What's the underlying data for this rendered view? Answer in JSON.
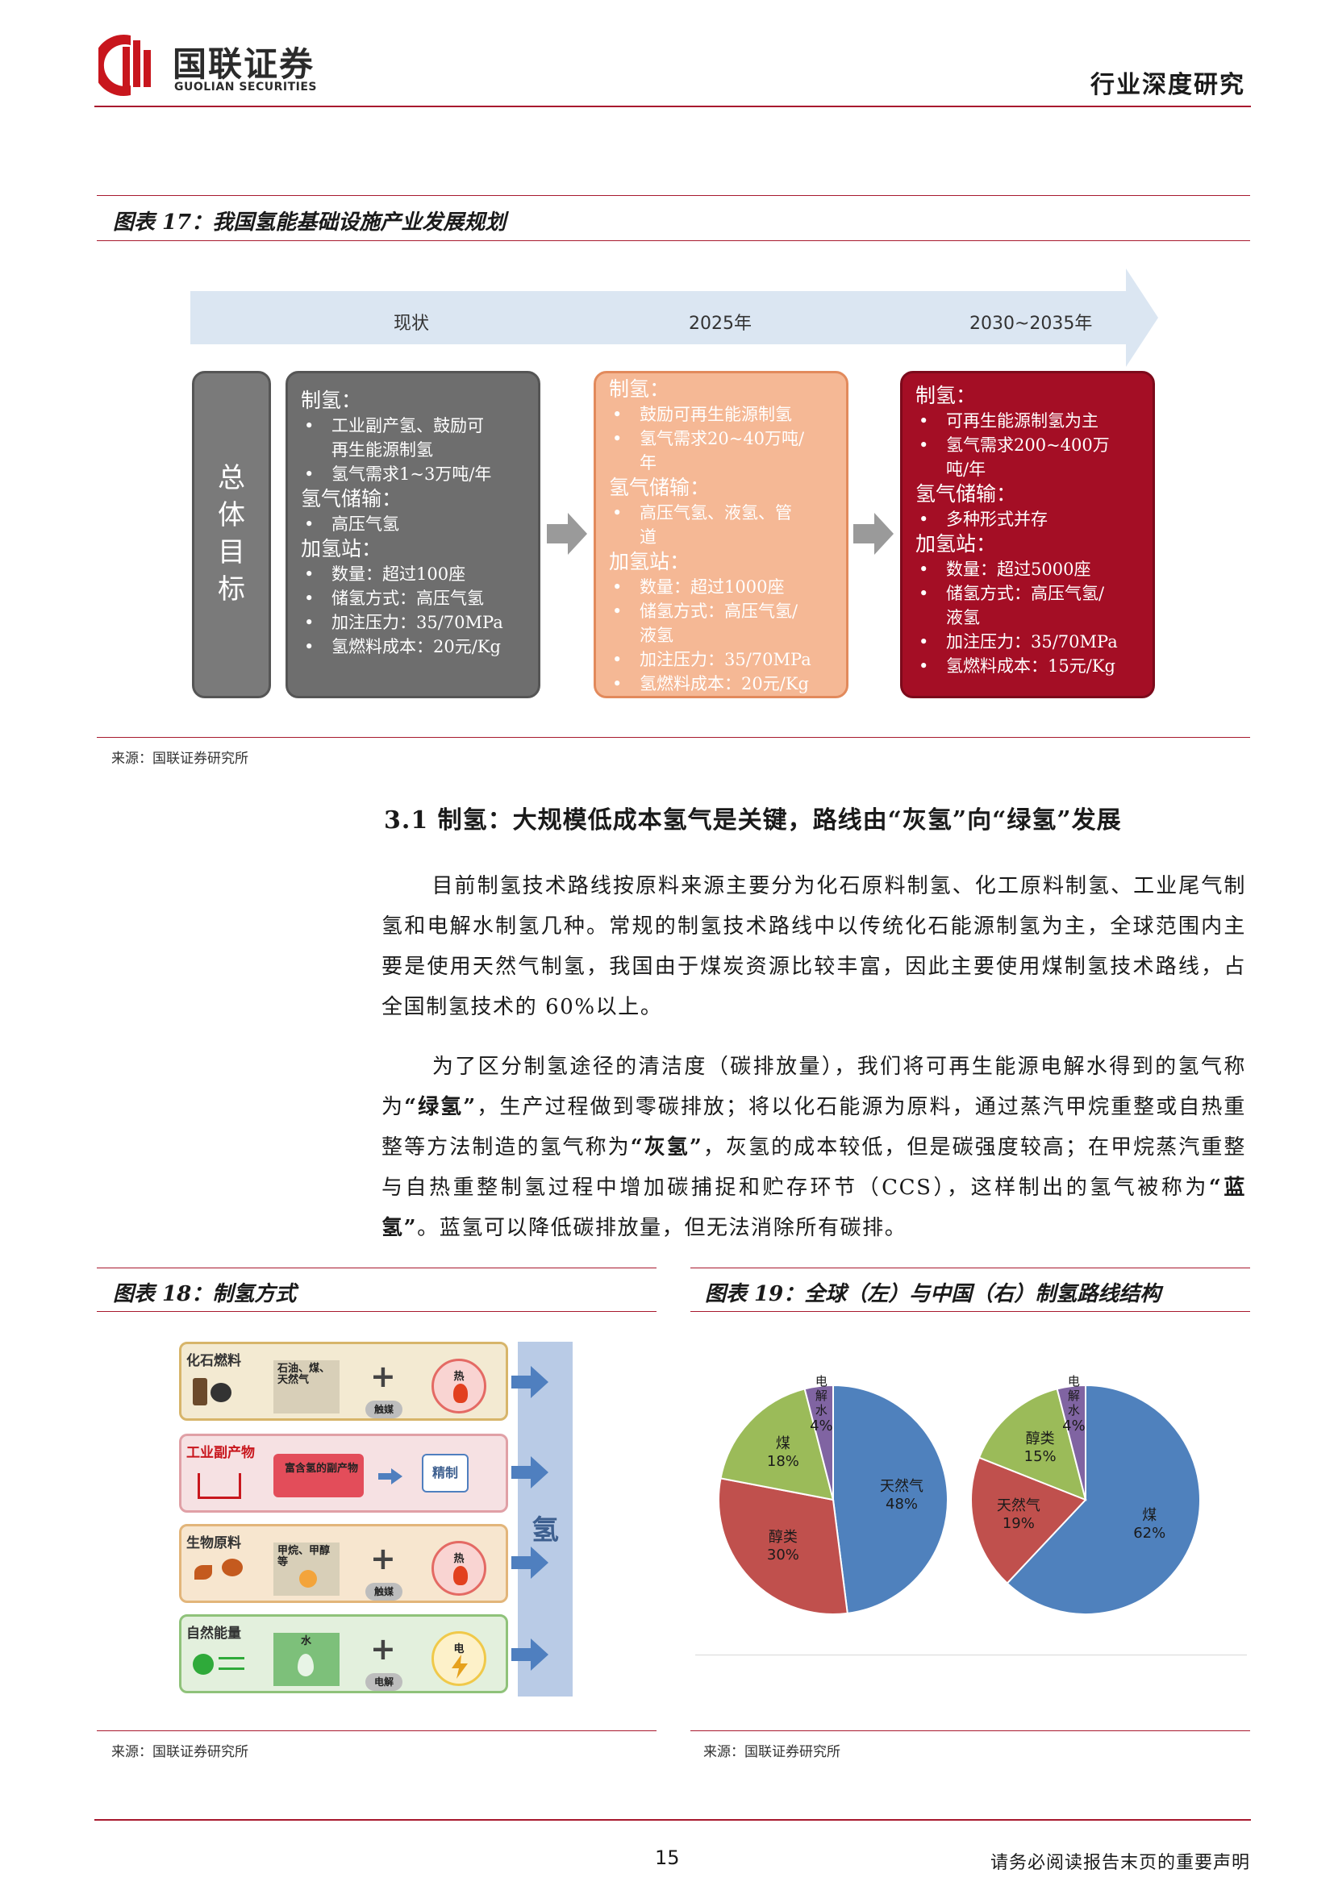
{
  "header": {
    "logo_cn": "国联证券",
    "logo_en": "GUOLIAN SECURITIES",
    "right_title": "行业深度研究"
  },
  "fig17": {
    "title": "图表 17：我国氢能基础设施产业发展规划",
    "timeline": [
      "现状",
      "2025年",
      "2030~2035年"
    ],
    "goal_label": [
      "总",
      "体",
      "目",
      "标"
    ],
    "boxes": [
      {
        "h1": "制氢：",
        "prod": [
          "工业副产氢、鼓励可",
          "再生能源制氢",
          "氢气需求1~3万吨/年"
        ],
        "h2": "氢气储输：",
        "storage": [
          "高压气氢"
        ],
        "h3": "加氢站：",
        "station": [
          "数量：超过100座",
          "储氢方式：高压气氢",
          "加注压力：35/70MPa",
          "氢燃料成本：20元/Kg"
        ]
      },
      {
        "h1": "制氢：",
        "prod": [
          "鼓励可再生能源制氢",
          "氢气需求20~40万吨/",
          "年"
        ],
        "h2": "氢气储输：",
        "storage": [
          "高压气氢、液氢、管",
          "道"
        ],
        "h3": "加氢站：",
        "station": [
          "数量：超过1000座",
          "储氢方式：高压气氢/",
          "液氢",
          "加注压力：35/70MPa",
          "氢燃料成本：20元/Kg"
        ]
      },
      {
        "h1": "制氢：",
        "prod": [
          "可再生能源制氢为主",
          "氢气需求200~400万",
          "吨/年"
        ],
        "h2": "氢气储输：",
        "storage": [
          "多种形式并存"
        ],
        "h3": "加氢站：",
        "station": [
          "数量：超过5000座",
          "储氢方式：高压气氢/",
          "液氢",
          "加注压力：35/70MPa",
          "氢燃料成本：15元/Kg"
        ]
      }
    ],
    "source": "来源：国联证券研究所"
  },
  "section": {
    "heading": "3.1 制氢：大规模低成本氢气是关键，路线由“灰氢”向“绿氢”发展",
    "para1": "目前制氢技术路线按原料来源主要分为化石原料制氢、化工原料制氢、工业尾气制氢和电解水制氢几种。常规的制氢技术路线中以传统化石能源制氢为主，全球范围内主要是使用天然气制氢，我国由于煤炭资源比较丰富，因此主要使用煤制氢技术路线，占全国制氢技术的 60%以上。",
    "para2_a": "为了区分制氢途径的清洁度（碳排放量），我们将可再生能源电解水得到的氢气称为",
    "para2_b": "“绿氢”",
    "para2_c": "，生产过程做到零碳排放；将以化石能源为原料，通过蒸汽甲烷重整或自热重整等方法制造的氢气称为",
    "para2_d": "“灰氢”",
    "para2_e": "，灰氢的成本较低，但是碳强度较高；在甲烷蒸汽重整与自热重整制氢过程中增加碳捕捉和贮存环节（CCS），这样制出的氢气被称为",
    "para2_f": "“蓝氢”",
    "para2_g": "。蓝氢可以降低碳排放量，但无法消除所有碳排。"
  },
  "fig18": {
    "title": "图表 18：制氢方式",
    "rows": [
      {
        "label": "化石燃料",
        "material": "石油、煤、天然气",
        "op": "触媒",
        "energy": "热"
      },
      {
        "label": "工业副产物",
        "material": "富含氢的副产物",
        "op": "精制"
      },
      {
        "label": "生物原料",
        "material": "甲烷、甲醇等",
        "op": "触媒",
        "energy": "热"
      },
      {
        "label": "自然能量",
        "material": "水",
        "op": "电解",
        "energy": "电"
      }
    ],
    "product": "氢",
    "source": "来源：国联证券研究所",
    "colors": {
      "fossil": "#f3ead2",
      "industry": "#f6e1e3",
      "bio": "#f7e6cf",
      "nature": "#e3f0dd",
      "product_bar": "#b9cbe6"
    }
  },
  "fig19": {
    "title": "图表 19：全球（左）与中国（右）制氢路线结构",
    "source": "来源：国联证券研究所"
  },
  "chart_data": [
    {
      "type": "pie",
      "title": "",
      "categories": [
        "天然气",
        "醇类",
        "煤",
        "电解水"
      ],
      "values": [
        48,
        30,
        18,
        4
      ],
      "colors": [
        "#4f81bd",
        "#c0504d",
        "#9bbb59",
        "#8064a2"
      ]
    },
    {
      "type": "pie",
      "title": "",
      "categories": [
        "煤",
        "天然气",
        "醇类",
        "电解水"
      ],
      "values": [
        62,
        19,
        15,
        4
      ],
      "colors": [
        "#4f81bd",
        "#c0504d",
        "#9bbb59",
        "#8064a2"
      ]
    }
  ],
  "footer": {
    "page": "15",
    "note": "请务必阅读报告末页的重要声明"
  }
}
